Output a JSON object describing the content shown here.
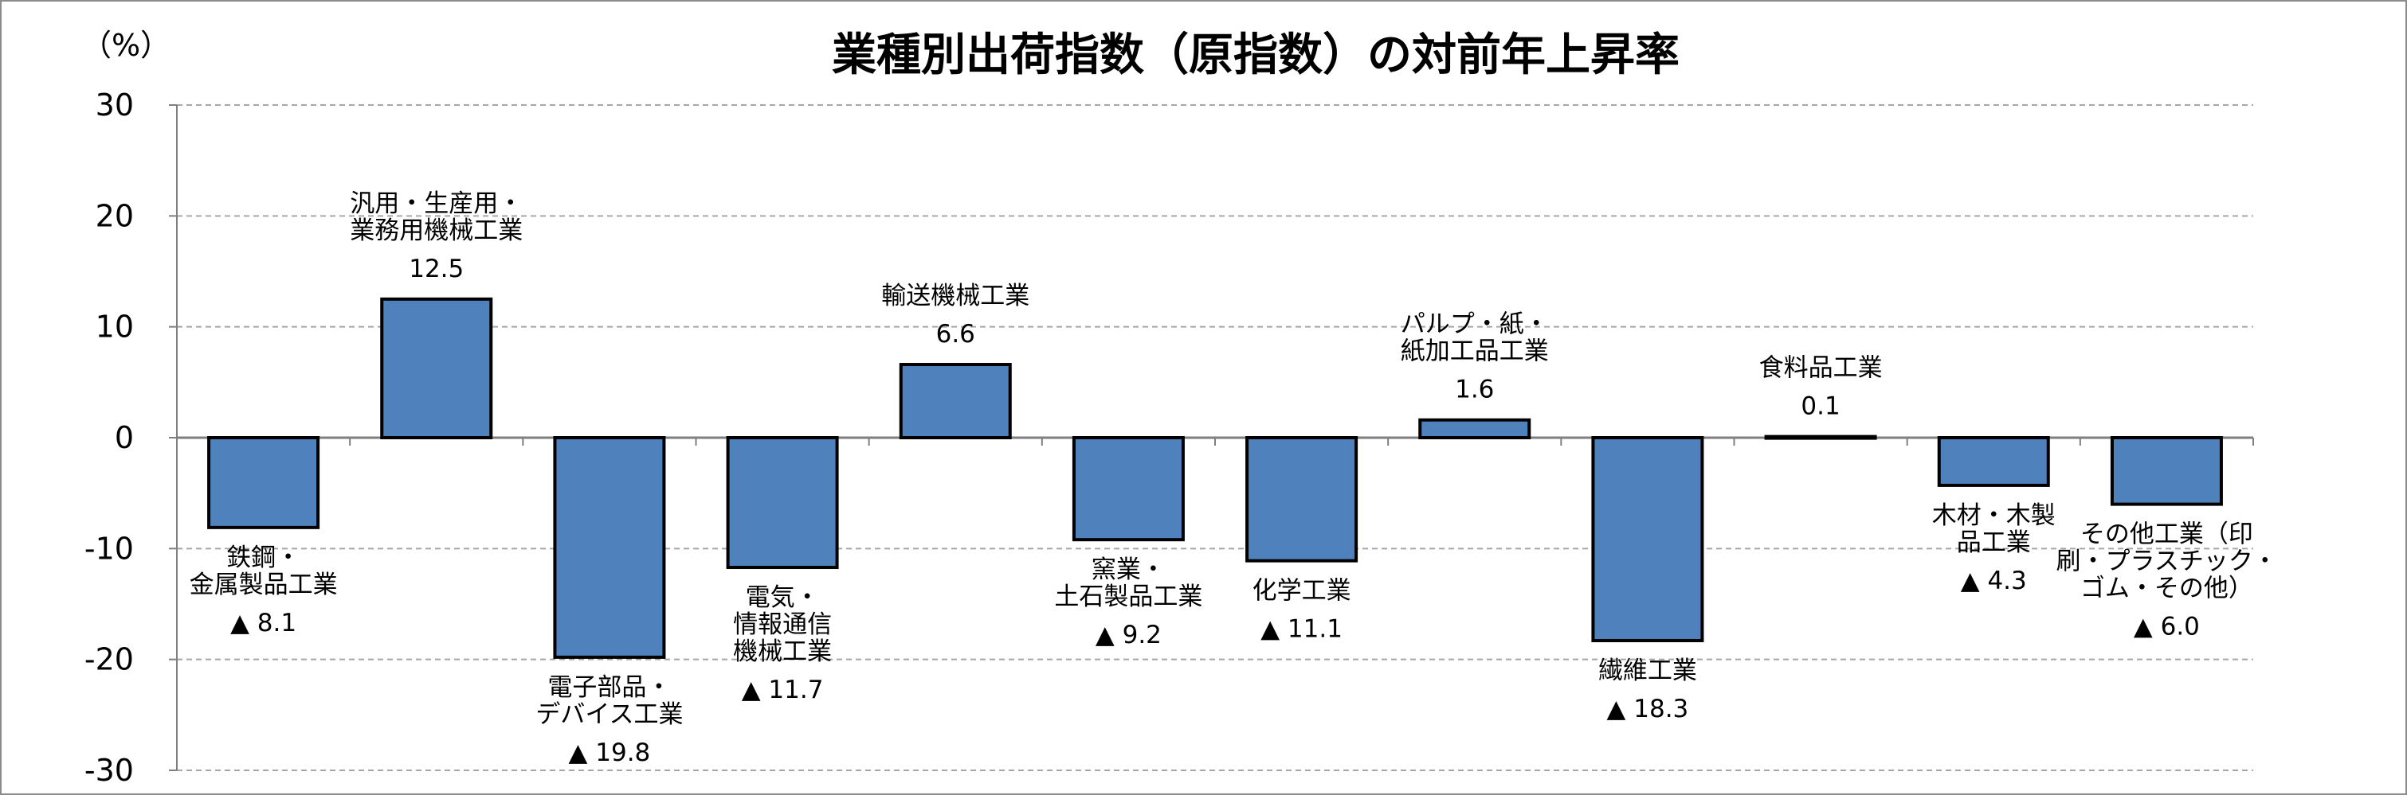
{
  "chart_data": {
    "type": "bar",
    "title": "業種別出荷指数（原指数）の対前年上昇率",
    "unit_label": "（%）",
    "ylim": [
      -30,
      30
    ],
    "yticks": [
      30,
      20,
      10,
      0,
      -10,
      -20,
      -30
    ],
    "ytick_labels": [
      "30",
      "20",
      "10",
      "0",
      "-10",
      "-20",
      "-30"
    ],
    "grid": true,
    "bar_color": "#4f81bd",
    "bar_border_color": "#000000",
    "categories": [
      {
        "lines": [
          "鉄鋼・",
          "金属製品工業"
        ],
        "value": -8.1,
        "value_label": "▲ 8.1"
      },
      {
        "lines": [
          "汎用・生産用・",
          "業務用機械工業"
        ],
        "value": 12.5,
        "value_label": "12.5"
      },
      {
        "lines": [
          "電子部品・",
          "デバイス工業"
        ],
        "value": -19.8,
        "value_label": "▲ 19.8"
      },
      {
        "lines": [
          "電気・",
          "情報通信",
          "機械工業"
        ],
        "value": -11.7,
        "value_label": "▲ 11.7"
      },
      {
        "lines": [
          "輸送機械工業"
        ],
        "value": 6.6,
        "value_label": "6.6"
      },
      {
        "lines": [
          "窯業・",
          "土石製品工業"
        ],
        "value": -9.2,
        "value_label": "▲ 9.2"
      },
      {
        "lines": [
          "化学工業"
        ],
        "value": -11.1,
        "value_label": "▲ 11.1"
      },
      {
        "lines": [
          "パルプ・紙・",
          "紙加工品工業"
        ],
        "value": 1.6,
        "value_label": "1.6"
      },
      {
        "lines": [
          "繊維工業"
        ],
        "value": -18.3,
        "value_label": "▲ 18.3"
      },
      {
        "lines": [
          "食料品工業"
        ],
        "value": 0.1,
        "value_label": "0.1"
      },
      {
        "lines": [
          "木材・木製",
          "品工業"
        ],
        "value": -4.3,
        "value_label": "▲ 4.3"
      },
      {
        "lines": [
          "その他工業（印",
          "刷・プラスチック・",
          "ゴム・その他）"
        ],
        "value": -6.0,
        "value_label": "▲ 6.0"
      }
    ]
  }
}
